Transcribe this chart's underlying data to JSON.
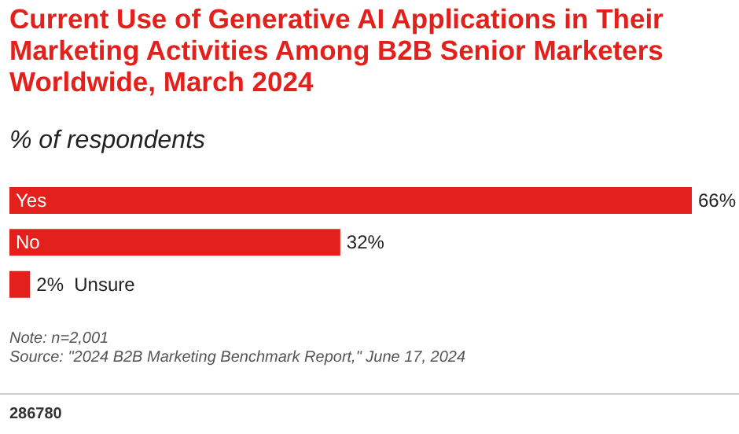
{
  "chart_data": {
    "type": "bar",
    "orientation": "horizontal",
    "title": "Current Use of Generative AI Applications in Their Marketing Activities Among B2B Senior Marketers Worldwide, March 2024",
    "subtitle": "% of respondents",
    "categories": [
      "Yes",
      "No",
      "Unsure"
    ],
    "values": [
      66,
      32,
      2
    ],
    "value_labels": [
      "66%",
      "32%",
      "2%"
    ],
    "color": "#e3201b",
    "annotations": [
      "Note: n=2,001",
      "Source: \"2024 B2B Marketing Benchmark Report,\" June 17, 2024",
      "286780"
    ]
  }
}
